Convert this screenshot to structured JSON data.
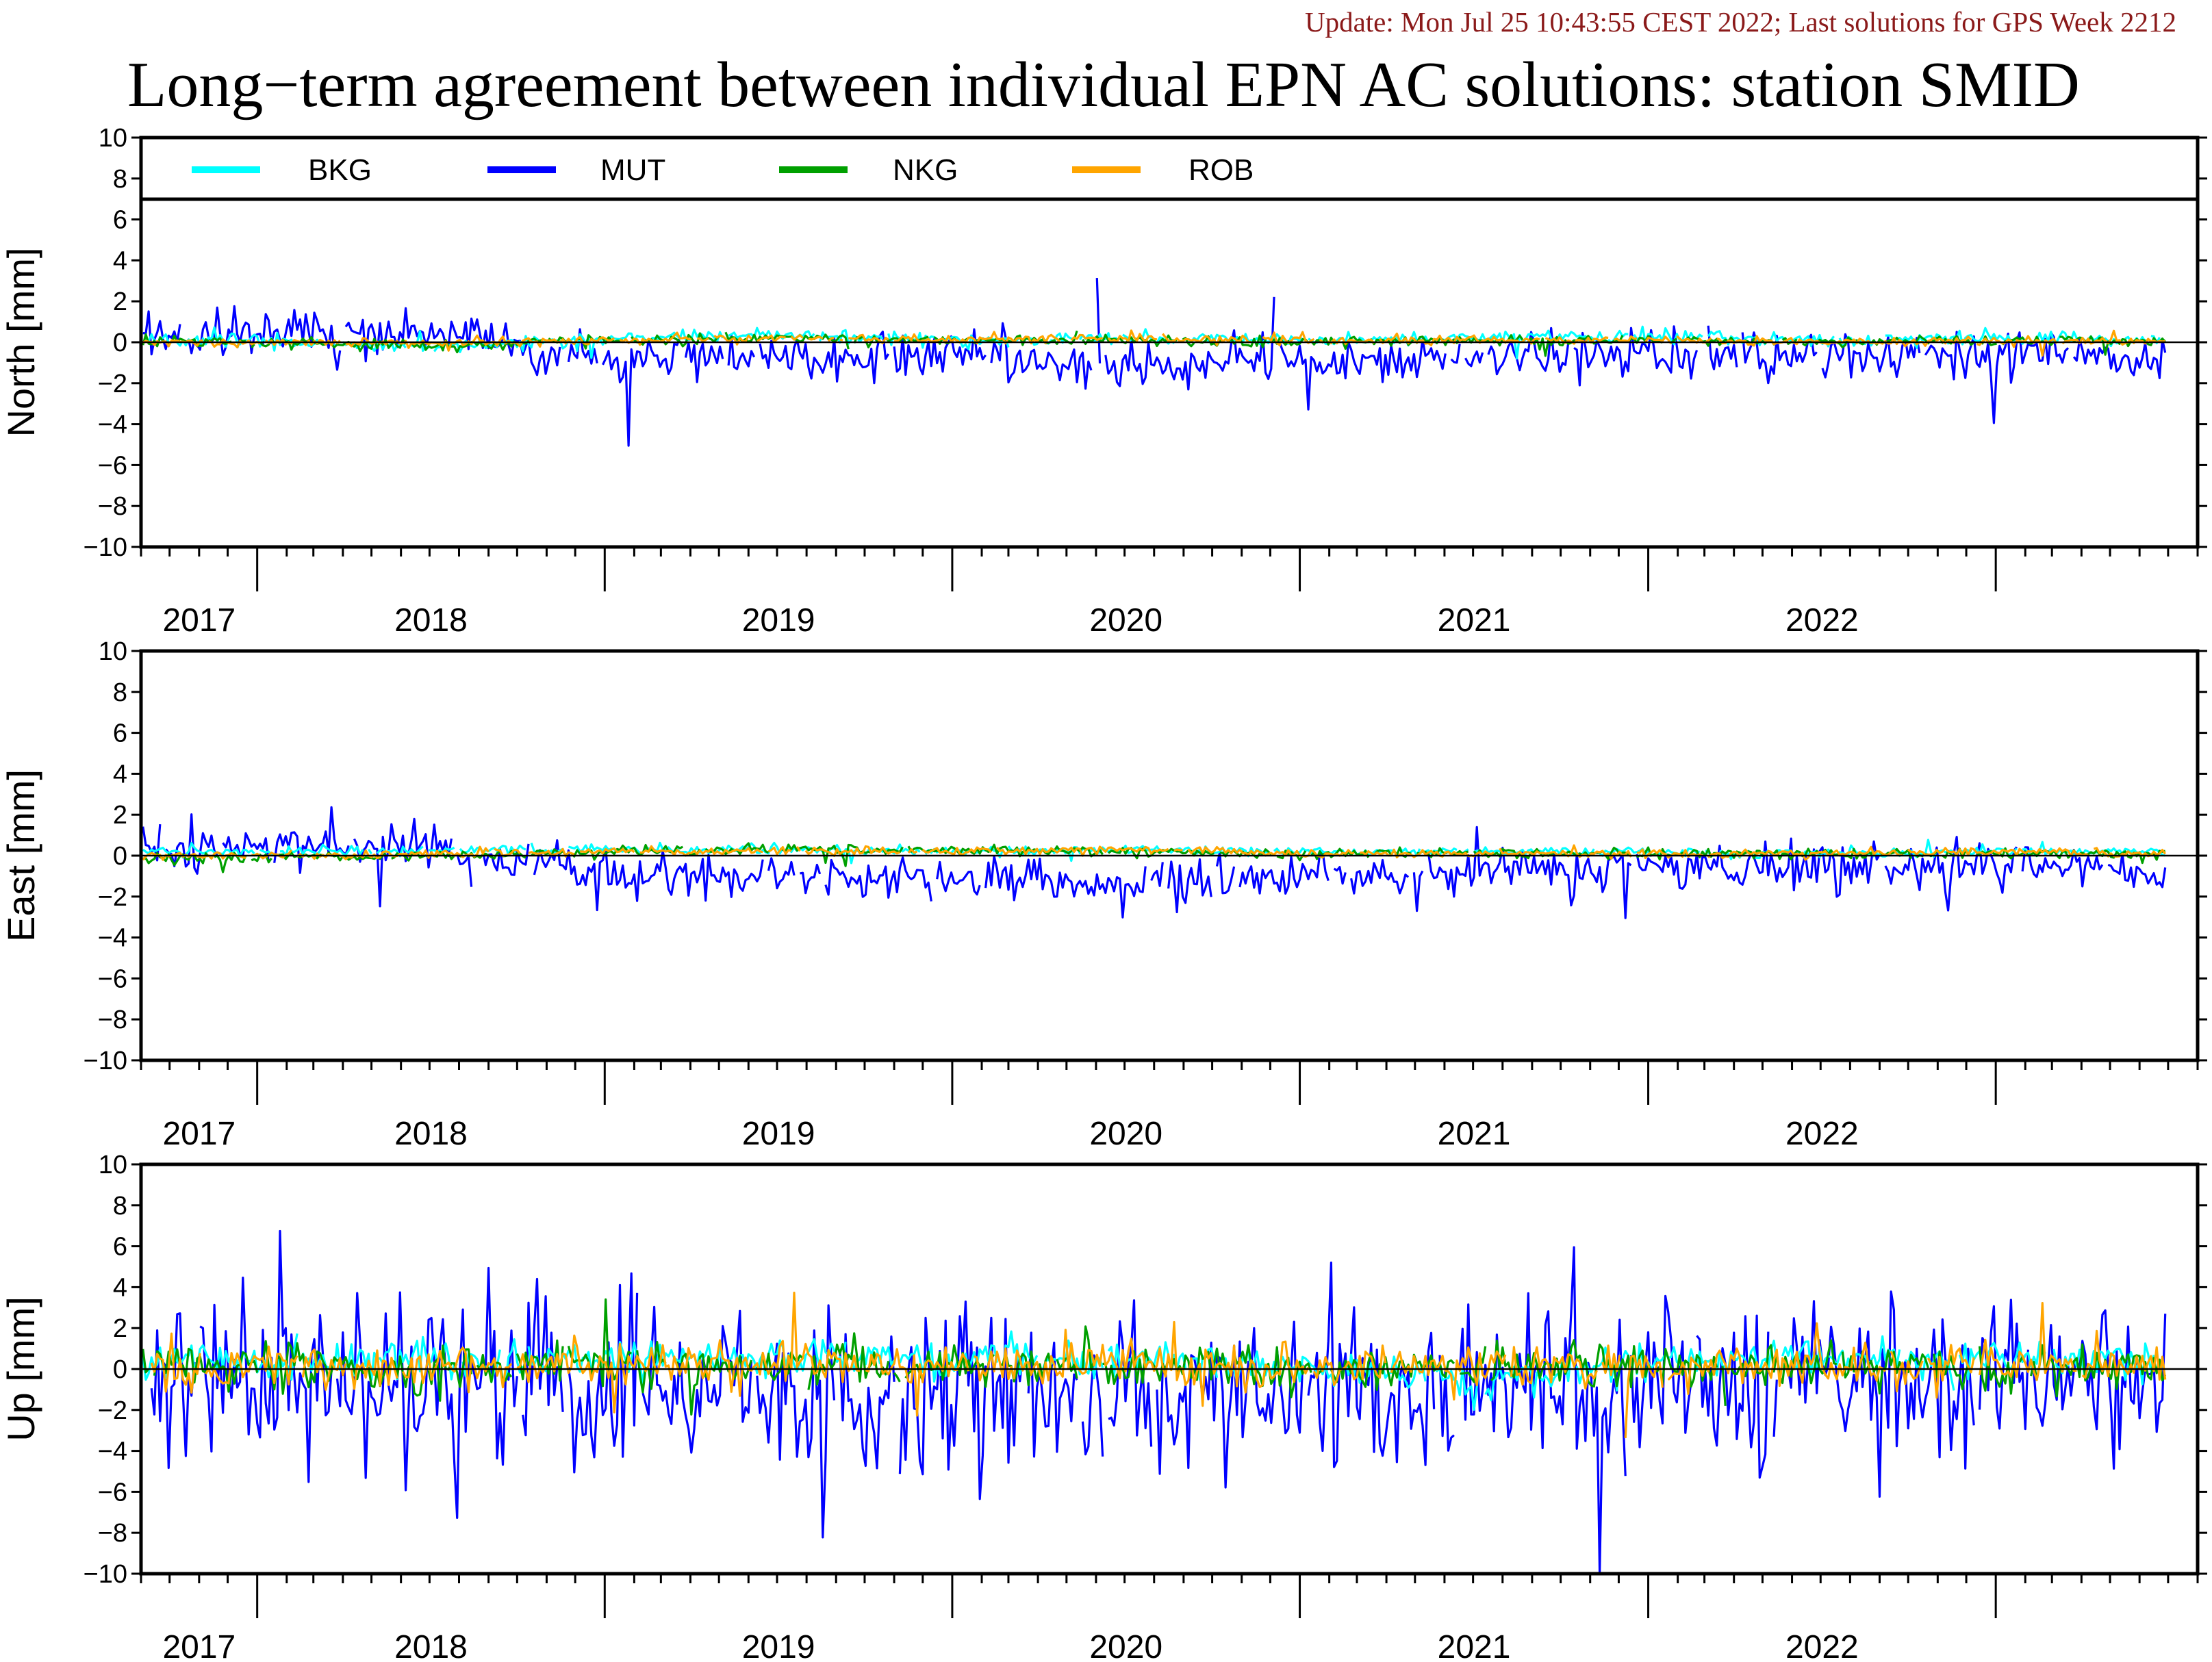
{
  "header": {
    "update_text": "Update: Mon Jul 25 10:43:55 CEST 2022; Last solutions for GPS Week 2212",
    "title": "Long−term agreement between individual EPN AC solutions: station SMID"
  },
  "chart_data": [
    {
      "type": "line",
      "panel": "north",
      "ylabel": "North [mm]",
      "ylim": [
        -10,
        10
      ],
      "yticks": [
        10,
        8,
        6,
        4,
        2,
        0,
        -2,
        -4,
        -6,
        -8,
        -10
      ],
      "xlim": [
        "2016-09-01",
        "2022-08-01"
      ],
      "x_tick_labels": [
        "2017",
        "2018",
        "2019",
        "2020",
        "2021",
        "2022"
      ],
      "legend_placement": "top, inside",
      "series": [
        {
          "name": "BKG",
          "color": "#00ffff",
          "x": [
            "2017-01-01",
            "2017-07-01",
            "2018-01-01",
            "2018-07-01",
            "2019-01-01",
            "2019-07-01",
            "2020-01-01",
            "2020-07-01",
            "2021-01-01",
            "2021-07-01",
            "2022-01-01",
            "2022-06-30"
          ],
          "values": [
            0.1,
            -0.3,
            0.2,
            0.4,
            0.1,
            0.2,
            0.1,
            0.2,
            0.3,
            0.1,
            0.2,
            0.1
          ]
        },
        {
          "name": "MUT",
          "color": "#0000ff",
          "x": [
            "2017-01-01",
            "2017-07-01",
            "2018-01-01",
            "2018-07-01",
            "2019-01-01",
            "2019-07-01",
            "2020-01-01",
            "2020-07-01",
            "2021-01-01",
            "2021-07-01",
            "2022-01-01",
            "2022-06-30"
          ],
          "values": [
            0.3,
            0.6,
            -0.8,
            -0.6,
            -0.7,
            -1.2,
            -0.9,
            -0.7,
            -0.6,
            -0.8,
            -0.5,
            -0.7
          ]
        },
        {
          "name": "NKG",
          "color": "#00a000",
          "x": [
            "2017-01-01",
            "2017-07-01",
            "2018-01-01",
            "2018-07-01",
            "2019-01-01",
            "2019-07-01",
            "2020-01-01",
            "2020-07-01",
            "2021-01-01",
            "2021-07-01",
            "2022-01-01",
            "2022-06-30"
          ],
          "values": [
            0.0,
            -0.2,
            0.1,
            0.2,
            0.1,
            0.1,
            0.0,
            0.1,
            0.1,
            0.0,
            0.1,
            0.1
          ]
        },
        {
          "name": "ROB",
          "color": "#ffa500",
          "x": [
            "2017-01-01",
            "2017-07-01",
            "2018-01-01",
            "2018-07-01",
            "2019-01-01",
            "2019-07-01",
            "2020-01-01",
            "2020-07-01",
            "2021-01-01",
            "2021-07-01",
            "2022-01-01",
            "2022-06-30"
          ],
          "values": [
            0.0,
            0.0,
            0.1,
            0.2,
            0.1,
            0.2,
            0.1,
            0.1,
            0.1,
            0.0,
            0.1,
            0.0
          ]
        }
      ]
    },
    {
      "type": "line",
      "panel": "east",
      "ylabel": "East [mm]",
      "ylim": [
        -10,
        10
      ],
      "yticks": [
        10,
        8,
        6,
        4,
        2,
        0,
        -2,
        -4,
        -6,
        -8,
        -10
      ],
      "xlim": [
        "2016-09-01",
        "2022-08-01"
      ],
      "x_tick_labels": [
        "2017",
        "2018",
        "2019",
        "2020",
        "2021",
        "2022"
      ],
      "series": [
        {
          "name": "BKG",
          "color": "#00ffff",
          "x": [
            "2017-01-01",
            "2017-07-01",
            "2018-01-01",
            "2018-07-01",
            "2019-01-01",
            "2019-07-01",
            "2020-01-01",
            "2020-07-01",
            "2021-01-01",
            "2021-07-01",
            "2022-01-01",
            "2022-06-30"
          ],
          "values": [
            0.2,
            0.3,
            0.3,
            0.3,
            0.2,
            0.3,
            0.2,
            0.2,
            0.2,
            0.1,
            0.2,
            0.2
          ]
        },
        {
          "name": "MUT",
          "color": "#0000ff",
          "x": [
            "2017-01-01",
            "2017-07-01",
            "2018-01-01",
            "2018-07-01",
            "2019-01-01",
            "2019-07-01",
            "2020-01-01",
            "2020-07-01",
            "2021-01-01",
            "2021-07-01",
            "2022-01-01",
            "2022-06-30"
          ],
          "values": [
            0.4,
            0.5,
            -0.9,
            -1.0,
            -1.1,
            -1.5,
            -0.9,
            -0.8,
            -0.6,
            -0.5,
            -0.4,
            -0.9
          ]
        },
        {
          "name": "NKG",
          "color": "#00a000",
          "x": [
            "2017-01-01",
            "2017-07-01",
            "2018-01-01",
            "2018-07-01",
            "2019-01-01",
            "2019-07-01",
            "2020-01-01",
            "2020-07-01",
            "2021-01-01",
            "2021-07-01",
            "2022-01-01",
            "2022-06-30"
          ],
          "values": [
            -0.1,
            0.0,
            0.2,
            0.3,
            0.3,
            0.2,
            0.1,
            0.1,
            0.1,
            0.1,
            0.1,
            0.1
          ]
        },
        {
          "name": "ROB",
          "color": "#ffa500",
          "x": [
            "2017-01-01",
            "2017-07-01",
            "2018-01-01",
            "2018-07-01",
            "2019-01-01",
            "2019-07-01",
            "2020-01-01",
            "2020-07-01",
            "2021-01-01",
            "2021-07-01",
            "2022-01-01",
            "2022-06-30"
          ],
          "values": [
            0.0,
            0.1,
            0.2,
            0.2,
            0.2,
            0.3,
            0.1,
            0.1,
            0.1,
            0.1,
            0.2,
            0.1
          ]
        }
      ]
    },
    {
      "type": "line",
      "panel": "up",
      "ylabel": "Up [mm]",
      "ylim": [
        -10,
        10
      ],
      "yticks": [
        10,
        8,
        6,
        4,
        2,
        0,
        -2,
        -4,
        -6,
        -8,
        -10
      ],
      "xlim": [
        "2016-09-01",
        "2022-08-01"
      ],
      "x_tick_labels": [
        "2017",
        "2018",
        "2019",
        "2020",
        "2021",
        "2022"
      ],
      "series": [
        {
          "name": "BKG",
          "color": "#00ffff",
          "x": [
            "2017-01-01",
            "2017-07-01",
            "2018-01-01",
            "2018-07-01",
            "2019-01-01",
            "2019-07-01",
            "2020-01-01",
            "2020-07-01",
            "2021-01-01",
            "2021-07-01",
            "2022-01-01",
            "2022-06-30"
          ],
          "values": [
            0.3,
            0.5,
            0.4,
            0.6,
            0.5,
            0.6,
            0.2,
            -0.5,
            0.4,
            0.6,
            0.5,
            0.4
          ]
        },
        {
          "name": "MUT",
          "color": "#0000ff",
          "x": [
            "2017-01-01",
            "2017-07-01",
            "2018-01-01",
            "2018-07-01",
            "2019-01-01",
            "2019-07-01",
            "2020-01-01",
            "2020-07-01",
            "2021-01-01",
            "2021-07-01",
            "2022-01-01",
            "2022-06-30"
          ],
          "values": [
            -0.5,
            -0.8,
            -1.0,
            -0.9,
            -1.4,
            -1.6,
            -1.0,
            -0.8,
            -1.1,
            -0.9,
            -0.8,
            -1.0
          ]
        },
        {
          "name": "NKG",
          "color": "#00a000",
          "x": [
            "2017-01-01",
            "2017-07-01",
            "2018-01-01",
            "2018-07-01",
            "2019-01-01",
            "2019-07-01",
            "2020-01-01",
            "2020-07-01",
            "2021-01-01",
            "2021-07-01",
            "2022-01-01",
            "2022-06-30"
          ],
          "values": [
            0.1,
            0.2,
            0.1,
            0.2,
            0.1,
            0.2,
            0.0,
            0.1,
            0.1,
            0.2,
            0.1,
            0.1
          ]
        },
        {
          "name": "ROB",
          "color": "#ffa500",
          "x": [
            "2017-01-01",
            "2017-07-01",
            "2018-01-01",
            "2018-07-01",
            "2019-01-01",
            "2019-07-01",
            "2020-01-01",
            "2020-07-01",
            "2021-01-01",
            "2021-07-01",
            "2022-01-01",
            "2022-06-30"
          ],
          "values": [
            0.0,
            0.1,
            0.2,
            0.3,
            0.2,
            0.3,
            0.0,
            0.1,
            0.1,
            0.1,
            0.2,
            0.1
          ]
        }
      ]
    }
  ]
}
